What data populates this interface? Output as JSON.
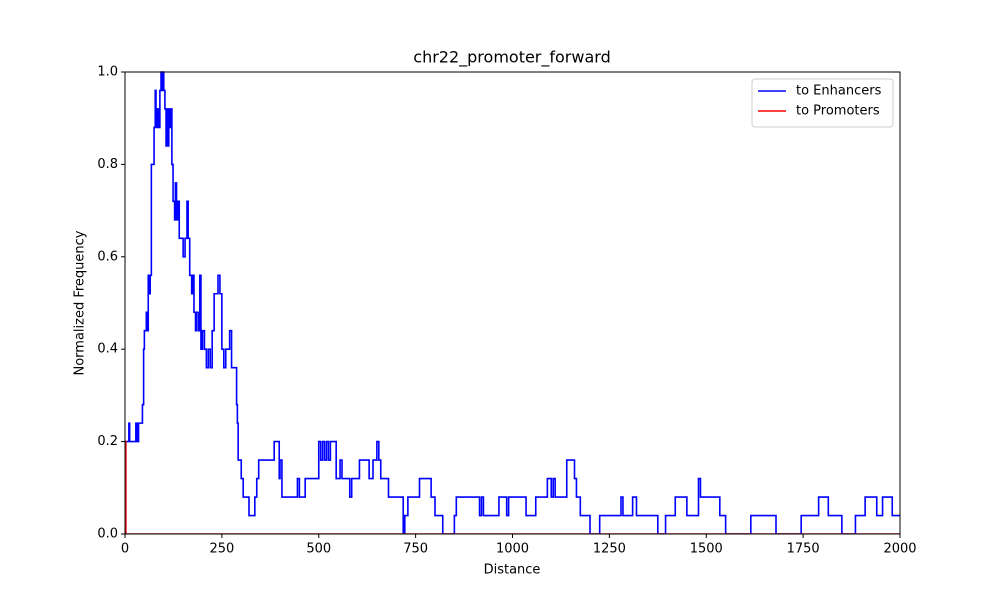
{
  "chart_data": {
    "type": "line",
    "title": "chr22_promoter_forward",
    "xlabel": "Distance",
    "ylabel": "Normalized Frequency",
    "xlim": [
      0,
      2000
    ],
    "ylim": [
      0,
      1
    ],
    "xticks": [
      0,
      250,
      500,
      750,
      1000,
      1250,
      1500,
      1750,
      2000
    ],
    "yticks": [
      {
        "value": 0,
        "label": "0.0"
      },
      0.2,
      0.4,
      0.6,
      0.8,
      {
        "value": 1,
        "label": "1.0"
      }
    ],
    "legend": "upper right",
    "step": true,
    "series": [
      {
        "name": "to Enhancers",
        "color": "#0000ff",
        "x": [
          0,
          2,
          8,
          10,
          12,
          25,
          28,
          32,
          35,
          42,
          45,
          48,
          50,
          55,
          57,
          60,
          62,
          65,
          68,
          72,
          75,
          78,
          80,
          83,
          86,
          90,
          93,
          96,
          98,
          100,
          103,
          106,
          108,
          110,
          113,
          116,
          118,
          121,
          124,
          128,
          130,
          133,
          136,
          140,
          145,
          150,
          155,
          160,
          163,
          167,
          172,
          175,
          178,
          182,
          185,
          190,
          193,
          196,
          200,
          205,
          210,
          215,
          220,
          225,
          230,
          235,
          240,
          245,
          250,
          255,
          260,
          270,
          275,
          285,
          288,
          290,
          292,
          295,
          300,
          305,
          315,
          320,
          330,
          335,
          340,
          345,
          380,
          385,
          395,
          398,
          400,
          405,
          440,
          445,
          450,
          460,
          465,
          495,
          500,
          505,
          510,
          515,
          520,
          525,
          530,
          540,
          545,
          555,
          560,
          570,
          580,
          585,
          600,
          605,
          625,
          630,
          640,
          650,
          655,
          660,
          670,
          680,
          715,
          718,
          722,
          730,
          755,
          760,
          785,
          790,
          800,
          815,
          820,
          845,
          850,
          855,
          910,
          915,
          920,
          925,
          960,
          965,
          980,
          985,
          990,
          1030,
          1035,
          1055,
          1060,
          1085,
          1090,
          1100,
          1105,
          1110,
          1135,
          1140,
          1160,
          1165,
          1175,
          1195,
          1200,
          1220,
          1225,
          1275,
          1280,
          1285,
          1305,
          1310,
          1320,
          1370,
          1375,
          1390,
          1395,
          1415,
          1420,
          1445,
          1450,
          1475,
          1480,
          1485,
          1530,
          1535,
          1545,
          1550,
          1610,
          1615,
          1675,
          1680,
          1740,
          1745,
          1785,
          1790,
          1810,
          1815,
          1845,
          1850,
          1880,
          1885,
          1905,
          1910,
          1935,
          1940,
          1950,
          1955,
          1975,
          1980,
          2000
        ],
        "values": [
          0,
          0.2,
          0.2,
          0.24,
          0.2,
          0.2,
          0.24,
          0.2,
          0.24,
          0.24,
          0.28,
          0.4,
          0.44,
          0.48,
          0.44,
          0.56,
          0.52,
          0.56,
          0.8,
          0.8,
          0.88,
          0.96,
          0.88,
          0.92,
          0.88,
          0.96,
          1.0,
          0.96,
          1.0,
          0.96,
          0.92,
          0.84,
          0.92,
          0.84,
          0.92,
          0.88,
          0.92,
          0.8,
          0.72,
          0.68,
          0.76,
          0.68,
          0.72,
          0.64,
          0.64,
          0.6,
          0.64,
          0.72,
          0.64,
          0.56,
          0.52,
          0.56,
          0.48,
          0.44,
          0.48,
          0.44,
          0.56,
          0.4,
          0.44,
          0.4,
          0.36,
          0.4,
          0.36,
          0.44,
          0.52,
          0.52,
          0.56,
          0.52,
          0.4,
          0.36,
          0.4,
          0.44,
          0.36,
          0.36,
          0.28,
          0.24,
          0.16,
          0.16,
          0.12,
          0.08,
          0.08,
          0.04,
          0.04,
          0.08,
          0.12,
          0.16,
          0.16,
          0.2,
          0.2,
          0.12,
          0.16,
          0.08,
          0.08,
          0.12,
          0.08,
          0.08,
          0.12,
          0.12,
          0.2,
          0.16,
          0.2,
          0.16,
          0.2,
          0.16,
          0.2,
          0.2,
          0.12,
          0.16,
          0.12,
          0.12,
          0.08,
          0.12,
          0.12,
          0.16,
          0.16,
          0.12,
          0.16,
          0.2,
          0.16,
          0.12,
          0.12,
          0.08,
          0.08,
          0,
          0.04,
          0.08,
          0.08,
          0.12,
          0.12,
          0.08,
          0.04,
          0.04,
          0,
          0,
          0.04,
          0.08,
          0.08,
          0.04,
          0.08,
          0.04,
          0.04,
          0.08,
          0.08,
          0.04,
          0.08,
          0.08,
          0.04,
          0.04,
          0.08,
          0.08,
          0.12,
          0.08,
          0.12,
          0.08,
          0.08,
          0.16,
          0.12,
          0.08,
          0.04,
          0.04,
          0,
          0,
          0.04,
          0.04,
          0.08,
          0.04,
          0.04,
          0.08,
          0.04,
          0.04,
          0,
          0,
          0.04,
          0.04,
          0.08,
          0.08,
          0.04,
          0.04,
          0.12,
          0.08,
          0.08,
          0.04,
          0.04,
          0,
          0,
          0.04,
          0.04,
          0,
          0,
          0.04,
          0.04,
          0.08,
          0.08,
          0.04,
          0.04,
          0,
          0,
          0.04,
          0.04,
          0.08,
          0.08,
          0.04,
          0.04,
          0.08,
          0.08,
          0.04,
          0.04
        ]
      },
      {
        "name": "to Promoters",
        "color": "#ff0000",
        "x": [
          0,
          2,
          2000
        ],
        "values": [
          0.2,
          0,
          0
        ]
      }
    ]
  }
}
